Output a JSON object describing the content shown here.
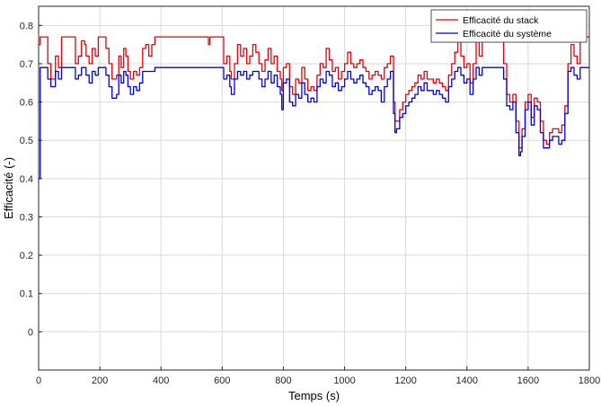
{
  "chart_data": {
    "type": "line",
    "xlabel": "Temps (s)",
    "ylabel": "Efficacité (-)",
    "xlim": [
      0,
      1800
    ],
    "ylim": [
      -0.1,
      0.85
    ],
    "xticks": [
      0,
      200,
      400,
      600,
      800,
      1000,
      1200,
      1400,
      1600,
      1800
    ],
    "yticks": [
      0,
      0.1,
      0.2,
      0.3,
      0.4,
      0.5,
      0.6,
      0.7,
      0.8
    ],
    "grid": true,
    "legend_position": "top-right",
    "series": [
      {
        "name": "Efficacité du stack",
        "color": "#e8000b",
        "x": [
          0,
          5,
          20,
          30,
          40,
          55,
          65,
          75,
          85,
          110,
          120,
          130,
          140,
          150,
          155,
          165,
          175,
          185,
          195,
          210,
          220,
          230,
          240,
          255,
          262,
          270,
          278,
          285,
          292,
          300,
          310,
          320,
          330,
          340,
          350,
          360,
          370,
          380,
          390,
          400,
          420,
          440,
          460,
          480,
          500,
          540,
          555,
          560,
          575,
          600,
          605,
          615,
          625,
          630,
          640,
          650,
          660,
          670,
          680,
          690,
          700,
          710,
          720,
          730,
          740,
          750,
          760,
          770,
          780,
          790,
          795,
          800,
          810,
          820,
          830,
          840,
          850,
          860,
          870,
          880,
          890,
          900,
          910,
          920,
          930,
          940,
          950,
          960,
          970,
          980,
          990,
          1000,
          1010,
          1020,
          1030,
          1040,
          1050,
          1060,
          1070,
          1080,
          1090,
          1100,
          1110,
          1120,
          1130,
          1140,
          1150,
          1160,
          1165,
          1170,
          1180,
          1190,
          1200,
          1210,
          1220,
          1230,
          1240,
          1250,
          1260,
          1270,
          1280,
          1290,
          1300,
          1310,
          1320,
          1330,
          1340,
          1350,
          1360,
          1370,
          1380,
          1390,
          1400,
          1410,
          1420,
          1430,
          1440,
          1450,
          1460,
          1480,
          1500,
          1520,
          1530,
          1540,
          1550,
          1560,
          1570,
          1575,
          1580,
          1590,
          1600,
          1610,
          1620,
          1630,
          1640,
          1650,
          1660,
          1670,
          1680,
          1690,
          1700,
          1710,
          1720,
          1730,
          1740,
          1750,
          1760,
          1770,
          1780,
          1790,
          1800
        ],
        "y": [
          0.75,
          0.77,
          0.77,
          0.7,
          0.66,
          0.72,
          0.69,
          0.77,
          0.77,
          0.77,
          0.7,
          0.72,
          0.76,
          0.75,
          0.72,
          0.7,
          0.74,
          0.72,
          0.77,
          0.77,
          0.74,
          0.7,
          0.66,
          0.67,
          0.72,
          0.69,
          0.74,
          0.72,
          0.68,
          0.66,
          0.68,
          0.67,
          0.69,
          0.74,
          0.75,
          0.72,
          0.75,
          0.77,
          0.77,
          0.77,
          0.77,
          0.77,
          0.77,
          0.77,
          0.77,
          0.77,
          0.75,
          0.77,
          0.77,
          0.77,
          0.7,
          0.72,
          0.68,
          0.66,
          0.7,
          0.75,
          0.72,
          0.74,
          0.7,
          0.72,
          0.75,
          0.73,
          0.7,
          0.68,
          0.71,
          0.74,
          0.7,
          0.72,
          0.68,
          0.66,
          0.63,
          0.69,
          0.7,
          0.64,
          0.62,
          0.66,
          0.65,
          0.69,
          0.66,
          0.63,
          0.64,
          0.63,
          0.67,
          0.7,
          0.69,
          0.74,
          0.71,
          0.68,
          0.69,
          0.66,
          0.68,
          0.7,
          0.73,
          0.7,
          0.69,
          0.7,
          0.71,
          0.69,
          0.68,
          0.66,
          0.67,
          0.68,
          0.67,
          0.66,
          0.69,
          0.7,
          0.72,
          0.6,
          0.55,
          0.55,
          0.58,
          0.6,
          0.62,
          0.63,
          0.64,
          0.65,
          0.67,
          0.66,
          0.68,
          0.66,
          0.66,
          0.65,
          0.66,
          0.65,
          0.64,
          0.63,
          0.67,
          0.7,
          0.73,
          0.76,
          0.72,
          0.69,
          0.7,
          0.65,
          0.7,
          0.76,
          0.72,
          0.77,
          0.77,
          0.77,
          0.77,
          0.7,
          0.62,
          0.6,
          0.62,
          0.55,
          0.48,
          0.48,
          0.53,
          0.6,
          0.62,
          0.56,
          0.61,
          0.6,
          0.55,
          0.5,
          0.49,
          0.52,
          0.53,
          0.53,
          0.52,
          0.54,
          0.59,
          0.7,
          0.75,
          0.72,
          0.7,
          0.77,
          0.77,
          0.77,
          0.77
        ]
      },
      {
        "name": "Efficacité du système",
        "color": "#0000e6",
        "x": [
          0,
          5,
          20,
          30,
          40,
          55,
          65,
          75,
          85,
          110,
          120,
          130,
          140,
          150,
          155,
          165,
          175,
          185,
          195,
          210,
          220,
          230,
          240,
          255,
          262,
          270,
          278,
          285,
          292,
          300,
          310,
          320,
          330,
          340,
          350,
          360,
          370,
          380,
          390,
          400,
          420,
          440,
          460,
          480,
          500,
          540,
          555,
          560,
          575,
          600,
          605,
          615,
          625,
          630,
          640,
          650,
          660,
          670,
          680,
          690,
          700,
          710,
          720,
          730,
          740,
          750,
          760,
          770,
          780,
          790,
          795,
          800,
          810,
          820,
          830,
          840,
          850,
          860,
          870,
          880,
          890,
          900,
          910,
          920,
          930,
          940,
          950,
          960,
          970,
          980,
          990,
          1000,
          1010,
          1020,
          1030,
          1040,
          1050,
          1060,
          1070,
          1080,
          1090,
          1100,
          1110,
          1120,
          1130,
          1140,
          1150,
          1160,
          1165,
          1170,
          1180,
          1190,
          1200,
          1210,
          1220,
          1230,
          1240,
          1250,
          1260,
          1270,
          1280,
          1290,
          1300,
          1310,
          1320,
          1330,
          1340,
          1350,
          1360,
          1370,
          1380,
          1390,
          1400,
          1410,
          1420,
          1430,
          1440,
          1450,
          1460,
          1480,
          1500,
          1520,
          1530,
          1540,
          1550,
          1560,
          1570,
          1575,
          1580,
          1590,
          1600,
          1610,
          1620,
          1630,
          1640,
          1650,
          1660,
          1670,
          1680,
          1690,
          1700,
          1710,
          1720,
          1730,
          1740,
          1750,
          1760,
          1770,
          1780,
          1790,
          1800
        ],
        "y": [
          0.4,
          0.69,
          0.69,
          0.66,
          0.64,
          0.68,
          0.66,
          0.69,
          0.69,
          0.69,
          0.66,
          0.67,
          0.69,
          0.69,
          0.67,
          0.65,
          0.68,
          0.67,
          0.69,
          0.69,
          0.67,
          0.64,
          0.61,
          0.62,
          0.67,
          0.65,
          0.68,
          0.67,
          0.64,
          0.62,
          0.64,
          0.63,
          0.65,
          0.68,
          0.68,
          0.68,
          0.68,
          0.69,
          0.69,
          0.69,
          0.69,
          0.69,
          0.69,
          0.69,
          0.69,
          0.69,
          0.69,
          0.69,
          0.69,
          0.69,
          0.66,
          0.67,
          0.64,
          0.62,
          0.66,
          0.68,
          0.67,
          0.68,
          0.66,
          0.67,
          0.68,
          0.68,
          0.66,
          0.64,
          0.66,
          0.68,
          0.65,
          0.67,
          0.64,
          0.62,
          0.58,
          0.65,
          0.66,
          0.6,
          0.59,
          0.62,
          0.61,
          0.65,
          0.62,
          0.6,
          0.61,
          0.6,
          0.64,
          0.66,
          0.65,
          0.68,
          0.67,
          0.64,
          0.65,
          0.63,
          0.64,
          0.66,
          0.68,
          0.66,
          0.65,
          0.66,
          0.67,
          0.65,
          0.64,
          0.62,
          0.63,
          0.64,
          0.63,
          0.6,
          0.64,
          0.66,
          0.68,
          0.57,
          0.52,
          0.53,
          0.56,
          0.57,
          0.59,
          0.6,
          0.61,
          0.62,
          0.64,
          0.63,
          0.65,
          0.63,
          0.63,
          0.62,
          0.63,
          0.62,
          0.61,
          0.6,
          0.64,
          0.66,
          0.68,
          0.69,
          0.67,
          0.65,
          0.66,
          0.62,
          0.66,
          0.69,
          0.67,
          0.69,
          0.69,
          0.69,
          0.69,
          0.66,
          0.59,
          0.58,
          0.6,
          0.52,
          0.46,
          0.47,
          0.51,
          0.58,
          0.6,
          0.54,
          0.59,
          0.58,
          0.52,
          0.48,
          0.48,
          0.5,
          0.51,
          0.51,
          0.49,
          0.5,
          0.57,
          0.68,
          0.69,
          0.67,
          0.66,
          0.69,
          0.69,
          0.69,
          0.69
        ]
      }
    ]
  }
}
